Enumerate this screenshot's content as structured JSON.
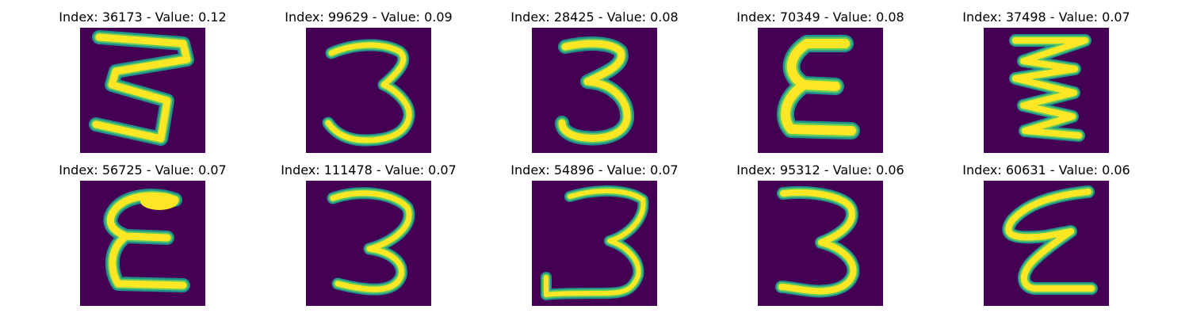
{
  "colors": {
    "background": "#440154",
    "edge": "#21918c",
    "mid": "#5ec962",
    "core": "#fde725"
  },
  "panels": [
    {
      "title": "Index: 36173 - Value: 0.12",
      "icon": "digit-3-image"
    },
    {
      "title": "Index: 99629 - Value: 0.09",
      "icon": "digit-3-image"
    },
    {
      "title": "Index: 28425 - Value: 0.08",
      "icon": "digit-3-image"
    },
    {
      "title": "Index: 70349 - Value: 0.08",
      "icon": "digit-3-image"
    },
    {
      "title": "Index: 37498 - Value: 0.07",
      "icon": "digit-3-image"
    },
    {
      "title": "Index: 56725 - Value: 0.07",
      "icon": "digit-3-image"
    },
    {
      "title": "Index: 111478 - Value: 0.07",
      "icon": "digit-3-image"
    },
    {
      "title": "Index: 54896 - Value: 0.07",
      "icon": "digit-3-image"
    },
    {
      "title": "Index: 95312 - Value: 0.06",
      "icon": "digit-3-image"
    },
    {
      "title": "Index: 60631 - Value: 0.06",
      "icon": "digit-3-image"
    }
  ]
}
